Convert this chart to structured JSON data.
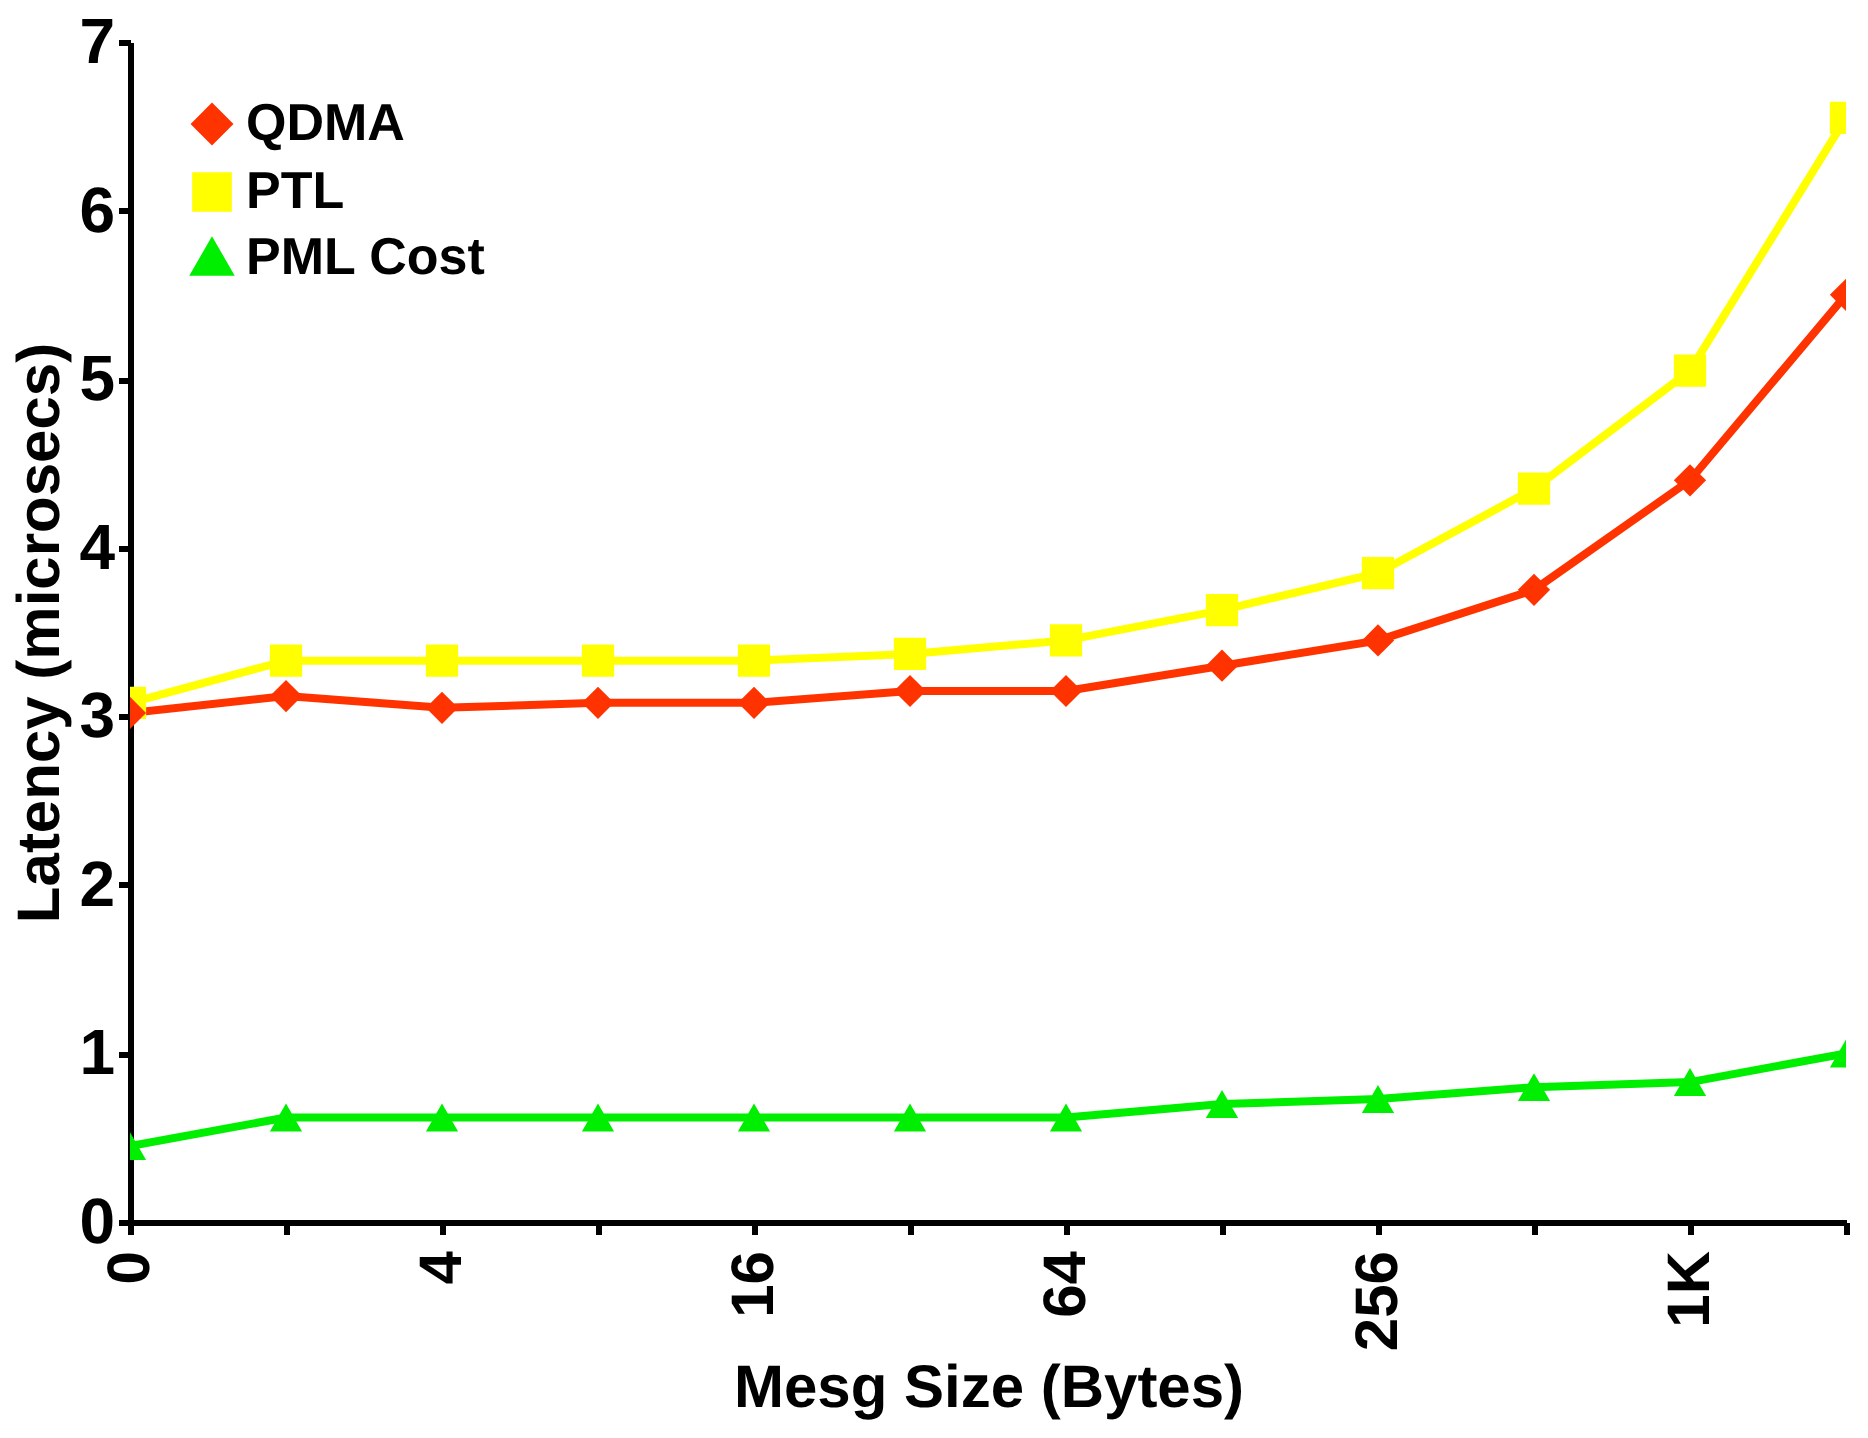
{
  "chart_data": {
    "type": "line",
    "xlabel": "Mesg Size (Bytes)",
    "ylabel": "Latency (microsecs)",
    "categories": [
      "0",
      null,
      "4",
      null,
      "16",
      null,
      "64",
      null,
      "256",
      null,
      "1K",
      null
    ],
    "ylim": [
      0,
      7
    ],
    "yticks": [
      0,
      1,
      2,
      3,
      4,
      5,
      6,
      7
    ],
    "grid": false,
    "legend": "top left",
    "series": [
      {
        "name": "QDMA",
        "color": "#ff3300",
        "marker": "diamond",
        "values": [
          3.02,
          3.12,
          3.05,
          3.08,
          3.08,
          3.15,
          3.15,
          3.3,
          3.45,
          3.75,
          4.4,
          5.5
        ]
      },
      {
        "name": "PTL",
        "color": "#ffff00",
        "marker": "square",
        "values": [
          3.08,
          3.33,
          3.33,
          3.33,
          3.33,
          3.37,
          3.45,
          3.63,
          3.85,
          4.35,
          5.05,
          6.55
        ]
      },
      {
        "name": "PML Cost",
        "color": "#00ee00",
        "marker": "triangle",
        "values": [
          0.45,
          0.62,
          0.62,
          0.62,
          0.62,
          0.62,
          0.62,
          0.7,
          0.73,
          0.8,
          0.83,
          1.0
        ]
      }
    ]
  }
}
